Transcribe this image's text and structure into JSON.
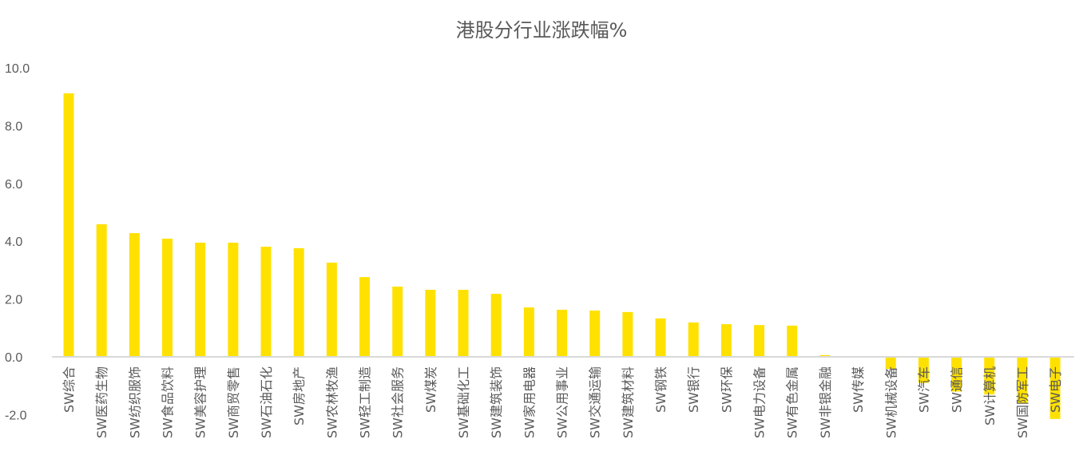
{
  "chart_data": {
    "type": "bar",
    "title": "港股分行业涨跌幅%",
    "xlabel": "",
    "ylabel": "",
    "ylim": [
      -2.0,
      10.0
    ],
    "yticks": [
      "10.0",
      "8.0",
      "6.0",
      "4.0",
      "2.0",
      "0.0",
      "-2.0"
    ],
    "ytick_values": [
      10,
      8,
      6,
      4,
      2,
      0,
      -2
    ],
    "grid": false,
    "bar_color": "#FFE100",
    "categories": [
      "SW综合",
      "SW医药生物",
      "SW纺织服饰",
      "SW食品饮料",
      "SW美容护理",
      "SW商贸零售",
      "SW石油石化",
      "SW房地产",
      "SW农林牧渔",
      "SW轻工制造",
      "SW社会服务",
      "SW煤炭",
      "SW基础化工",
      "SW建筑装饰",
      "SW家用电器",
      "SW公用事业",
      "SW交通运输",
      "SW建筑材料",
      "SW钢铁",
      "SW银行",
      "SW环保",
      "SW电力设备",
      "SW有色金属",
      "SW非银金融",
      "SW传媒",
      "SW机械设备",
      "SW汽车",
      "SW通信",
      "SW计算机",
      "SW国防军工",
      "SW电子"
    ],
    "values": [
      9.12,
      4.59,
      4.28,
      4.09,
      3.95,
      3.95,
      3.81,
      3.76,
      3.26,
      2.76,
      2.43,
      2.32,
      2.32,
      2.18,
      1.71,
      1.63,
      1.6,
      1.55,
      1.33,
      1.19,
      1.13,
      1.1,
      1.08,
      0.06,
      -0.02,
      -0.42,
      -0.9,
      -1.2,
      -1.3,
      -1.6,
      -2.15
    ]
  }
}
